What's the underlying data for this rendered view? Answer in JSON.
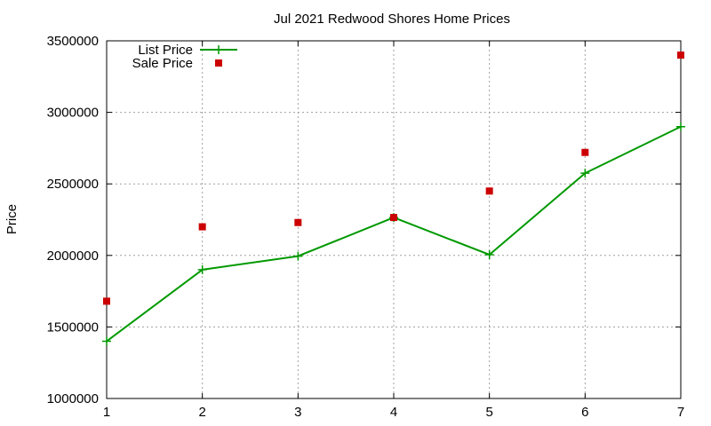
{
  "chart_data": {
    "type": "line",
    "title": "Jul 2021 Redwood Shores Home Prices",
    "xlabel": "",
    "ylabel": "Price",
    "x": [
      1,
      2,
      3,
      4,
      5,
      6,
      7
    ],
    "xlim": [
      1,
      7
    ],
    "ylim": [
      1000000,
      3500000
    ],
    "x_ticks": [
      "1",
      "2",
      "3",
      "4",
      "5",
      "6",
      "7"
    ],
    "y_ticks": [
      "1000000",
      "1500000",
      "2000000",
      "2500000",
      "3000000",
      "3500000"
    ],
    "y_tick_values": [
      1000000,
      1500000,
      2000000,
      2500000,
      3000000,
      3500000
    ],
    "grid": true,
    "legend_position": "top-left",
    "series": [
      {
        "name": "List Price",
        "style": "line-with-plus-markers",
        "color": "#009900",
        "values": [
          1400000,
          1900000,
          1995000,
          2265000,
          2005000,
          2575000,
          2900000
        ]
      },
      {
        "name": "Sale Price",
        "style": "square-markers",
        "color": "#cc0000",
        "values": [
          1680000,
          2200000,
          2230000,
          2265000,
          2450000,
          2720000,
          3400000
        ]
      }
    ]
  }
}
